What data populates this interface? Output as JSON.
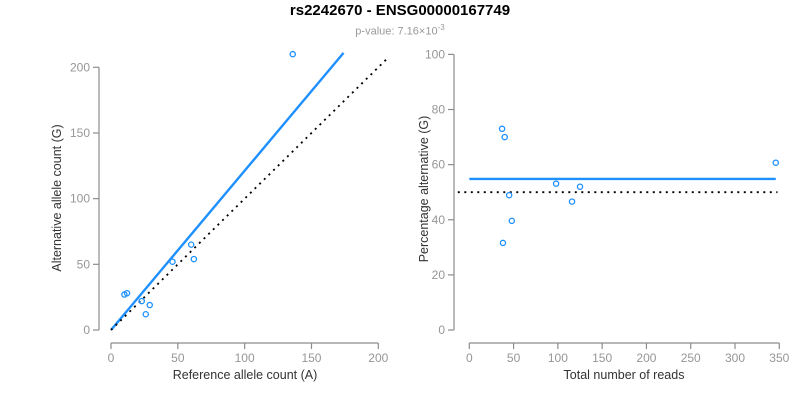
{
  "header": {
    "title": "rs2242670 - ENSG00000167749",
    "subtitle_label": "p-value: ",
    "p_value_base": "7.16×10",
    "p_value_exponent": "-3"
  },
  "colors": {
    "accent_blue": "#1E90FF",
    "line_black": "#000000",
    "axis_gray": "#8C8C8C",
    "tick_label_gray": "#969696",
    "axis_title_color": "#333333",
    "subtitle_gray": "#999999",
    "title_color": "#000000"
  },
  "chart_data": [
    {
      "type": "scatter",
      "name": "allele-counts-scatter",
      "xlabel": "Reference allele count (A)",
      "ylabel": "Alternative allele count (G)",
      "xlim": [
        0,
        200
      ],
      "ylim": [
        0,
        200
      ],
      "xticks": [
        0,
        50,
        100,
        150,
        200
      ],
      "yticks": [
        0,
        50,
        100,
        150,
        200
      ],
      "grid": false,
      "marker": "open-circle",
      "points": [
        [
          10,
          27
        ],
        [
          12,
          28
        ],
        [
          23,
          22
        ],
        [
          29,
          19
        ],
        [
          26,
          12
        ],
        [
          46,
          52
        ],
        [
          60,
          65
        ],
        [
          62,
          54
        ],
        [
          136,
          210
        ]
      ],
      "lines": [
        {
          "name": "fit-line",
          "style": "solid",
          "color": "#1E90FF",
          "from": [
            0,
            0
          ],
          "to": [
            174,
            211
          ]
        },
        {
          "name": "identity-line",
          "style": "dotted",
          "color": "#000000",
          "from": [
            0,
            0
          ],
          "to": [
            208,
            208
          ]
        }
      ]
    },
    {
      "type": "scatter",
      "name": "percentage-vs-reads-scatter",
      "xlabel": "Total number of reads",
      "ylabel": "Percentage alternative (G)",
      "xlim": [
        0,
        350
      ],
      "ylim": [
        0,
        100
      ],
      "xticks": [
        0,
        50,
        100,
        150,
        200,
        250,
        300,
        350
      ],
      "yticks": [
        0,
        20,
        40,
        60,
        80,
        100
      ],
      "grid": false,
      "marker": "open-circle",
      "points": [
        [
          37,
          73
        ],
        [
          40,
          70
        ],
        [
          45,
          48.9
        ],
        [
          48,
          39.6
        ],
        [
          38,
          31.6
        ],
        [
          98,
          53.1
        ],
        [
          125,
          52
        ],
        [
          116,
          46.6
        ],
        [
          346,
          60.7
        ]
      ],
      "lines": [
        {
          "name": "mean-percentage-line",
          "style": "solid",
          "color": "#1E90FF",
          "y": 54.8,
          "x_from": 0,
          "x_to": 346
        },
        {
          "name": "fifty-percent-line",
          "style": "dotted",
          "color": "#000000",
          "y": 50,
          "x_from": -13,
          "x_to": 348
        }
      ]
    }
  ]
}
